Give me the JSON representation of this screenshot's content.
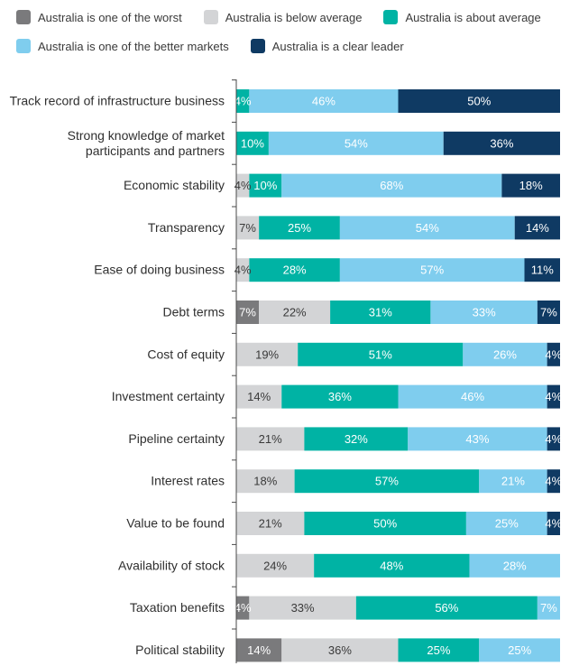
{
  "chart_data": {
    "type": "bar",
    "orientation": "horizontal",
    "stacked": true,
    "legend_position": "top",
    "xlim": [
      0,
      100
    ],
    "categories": [
      [
        "Track record of infrastructure business"
      ],
      [
        "Strong knowledge of market",
        "participants and partners"
      ],
      [
        "Economic stability"
      ],
      [
        "Transparency"
      ],
      [
        "Ease of doing business"
      ],
      [
        "Debt terms"
      ],
      [
        "Cost of equity"
      ],
      [
        "Investment certainty"
      ],
      [
        "Pipeline certainty"
      ],
      [
        "Interest rates"
      ],
      [
        "Value to be found"
      ],
      [
        "Availability of stock"
      ],
      [
        "Taxation benefits"
      ],
      [
        "Political stability"
      ]
    ],
    "series": [
      {
        "name": "Australia is one of the worst",
        "color": "#7a7a7c",
        "label_color": "#ffffff",
        "values": [
          0,
          0,
          0,
          0,
          0,
          7,
          0,
          0,
          0,
          0,
          0,
          0,
          4,
          14
        ]
      },
      {
        "name": "Australia is below average",
        "color": "#d3d4d6",
        "label_color": "#3a3a3a",
        "values": [
          0,
          0,
          4,
          7,
          4,
          22,
          19,
          14,
          21,
          18,
          21,
          24,
          33,
          36
        ]
      },
      {
        "name": "Australia is about average",
        "color": "#00b3a4",
        "label_color": "#ffffff",
        "values": [
          4,
          10,
          10,
          25,
          28,
          31,
          51,
          36,
          32,
          57,
          50,
          48,
          56,
          25
        ]
      },
      {
        "name": "Australia is one of the better markets",
        "color": "#7fcdee",
        "label_color": "#ffffff",
        "values": [
          46,
          54,
          68,
          54,
          57,
          33,
          26,
          46,
          43,
          21,
          25,
          28,
          7,
          25
        ]
      },
      {
        "name": "Australia is a clear leader",
        "color": "#0f3a63",
        "label_color": "#ffffff",
        "values": [
          50,
          36,
          18,
          14,
          11,
          7,
          4,
          4,
          4,
          4,
          4,
          0,
          0,
          0
        ]
      }
    ],
    "legend_rows": [
      [
        0,
        1,
        2
      ],
      [
        3,
        4
      ]
    ]
  }
}
